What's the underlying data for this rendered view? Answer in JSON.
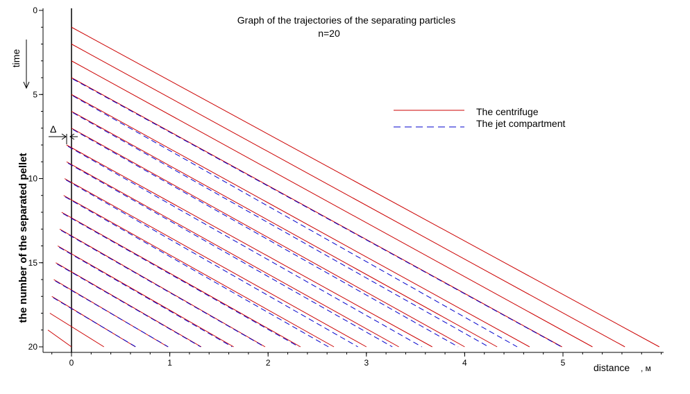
{
  "chart_data": {
    "type": "line",
    "title": "Graph of the trajectories of the separating particles",
    "subtitle": "n=20",
    "xlabel": "distance",
    "xunit": ", м",
    "ylabel": "the number of the separated pellet",
    "time_label": "time",
    "delta_label": "Δ",
    "xlim": [
      -0.25,
      6.0
    ],
    "ylim": [
      0,
      20
    ],
    "y_inverted": true,
    "x_ticks": [
      0,
      1,
      2,
      3,
      4,
      5
    ],
    "x_tick_labels": [
      "0",
      "1",
      "2",
      "3",
      "4",
      "5"
    ],
    "y_ticks": [
      0,
      5,
      10,
      15,
      20
    ],
    "y_tick_labels": [
      "0",
      "5",
      "10",
      "15",
      "20"
    ],
    "grid": false,
    "legend_position": "upper-right",
    "series": [
      {
        "name": "The centrifuge",
        "color": "#cc0000",
        "style": "solid",
        "lines": [
          {
            "start": [
              0.0,
              1
            ],
            "end": [
              5.98,
              20
            ]
          },
          {
            "start": [
              0.0,
              2
            ],
            "end": [
              5.63,
              20
            ]
          },
          {
            "start": [
              0.0,
              3
            ],
            "end": [
              5.3,
              20
            ]
          },
          {
            "start": [
              0.0,
              4
            ],
            "end": [
              4.99,
              20
            ]
          },
          {
            "start": [
              0.0,
              5
            ],
            "end": [
              4.66,
              20
            ]
          },
          {
            "start": [
              0.0,
              6
            ],
            "end": [
              4.33,
              20
            ]
          },
          {
            "start": [
              0.0,
              7
            ],
            "end": [
              4.0,
              20
            ]
          },
          {
            "start": [
              -0.05,
              8
            ],
            "end": [
              3.67,
              20
            ]
          },
          {
            "start": [
              -0.05,
              9
            ],
            "end": [
              3.33,
              20
            ]
          },
          {
            "start": [
              -0.07,
              10
            ],
            "end": [
              3.0,
              20
            ]
          },
          {
            "start": [
              -0.08,
              11
            ],
            "end": [
              2.67,
              20
            ]
          },
          {
            "start": [
              -0.1,
              12
            ],
            "end": [
              2.33,
              20
            ]
          },
          {
            "start": [
              -0.12,
              13
            ],
            "end": [
              1.97,
              20
            ]
          },
          {
            "start": [
              -0.14,
              14
            ],
            "end": [
              1.65,
              20
            ]
          },
          {
            "start": [
              -0.16,
              15
            ],
            "end": [
              1.32,
              20
            ]
          },
          {
            "start": [
              -0.18,
              16
            ],
            "end": [
              0.98,
              20
            ]
          },
          {
            "start": [
              -0.2,
              17
            ],
            "end": [
              0.65,
              20
            ]
          },
          {
            "start": [
              -0.22,
              18
            ],
            "end": [
              0.33,
              20
            ]
          },
          {
            "start": [
              -0.24,
              19
            ],
            "end": [
              0.0,
              20
            ]
          }
        ]
      },
      {
        "name": "The jet compartment",
        "color": "#0000cc",
        "style": "dashed",
        "lines": [
          {
            "start": [
              0.0,
              4
            ],
            "end": [
              4.97,
              20
            ]
          },
          {
            "start": [
              0.0,
              5
            ],
            "end": [
              4.52,
              20
            ]
          },
          {
            "start": [
              0.0,
              6
            ],
            "end": [
              4.23,
              20
            ]
          },
          {
            "start": [
              0.0,
              7
            ],
            "end": [
              3.92,
              20
            ]
          },
          {
            "start": [
              -0.05,
              8
            ],
            "end": [
              3.55,
              20
            ]
          },
          {
            "start": [
              -0.05,
              9
            ],
            "end": [
              3.25,
              20
            ]
          },
          {
            "start": [
              -0.07,
              10
            ],
            "end": [
              2.9,
              20
            ]
          },
          {
            "start": [
              -0.08,
              11
            ],
            "end": [
              2.6,
              20
            ]
          },
          {
            "start": [
              -0.1,
              12
            ],
            "end": [
              2.3,
              20
            ]
          },
          {
            "start": [
              -0.12,
              13
            ],
            "end": [
              1.95,
              20
            ]
          },
          {
            "start": [
              -0.14,
              14
            ],
            "end": [
              1.62,
              20
            ]
          },
          {
            "start": [
              -0.16,
              15
            ],
            "end": [
              1.3,
              20
            ]
          },
          {
            "start": [
              -0.18,
              16
            ],
            "end": [
              0.97,
              20
            ]
          },
          {
            "start": [
              -0.2,
              17
            ],
            "end": [
              0.64,
              20
            ]
          }
        ]
      }
    ]
  }
}
